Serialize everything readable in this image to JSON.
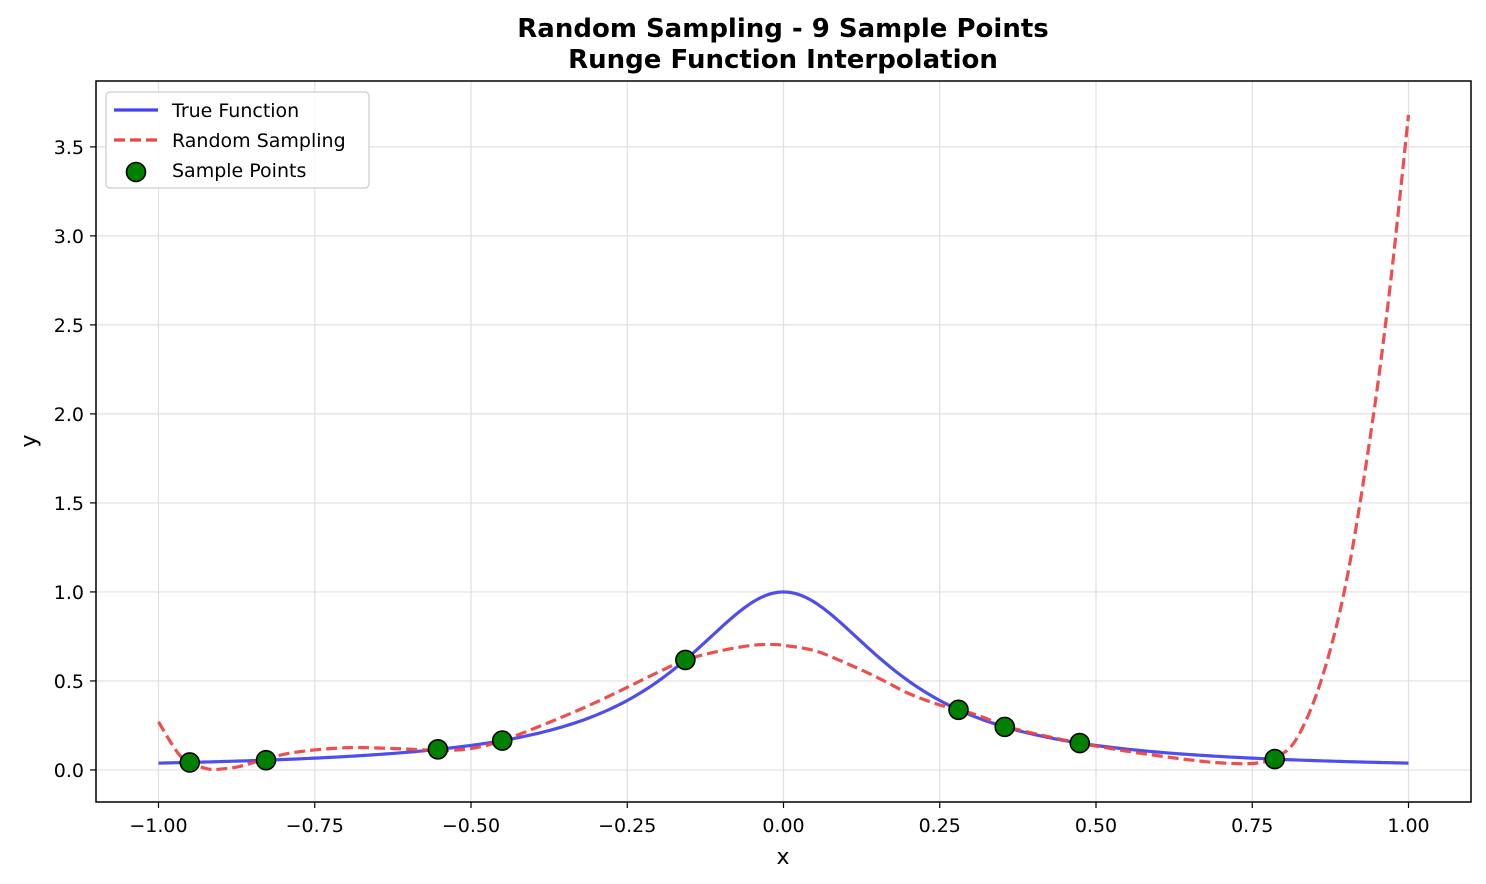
{
  "chart_data": {
    "type": "line",
    "title": "Random Sampling - 9 Sample Points",
    "subtitle": "Runge Function Interpolation",
    "xlabel": "x",
    "ylabel": "y",
    "xlim": [
      -1.1,
      1.1
    ],
    "ylim": [
      -0.18,
      3.87
    ],
    "xticks": [
      -1.0,
      -0.75,
      -0.5,
      -0.25,
      0.0,
      0.25,
      0.5,
      0.75,
      1.0
    ],
    "xtick_labels": [
      "−1.00",
      "−0.75",
      "−0.50",
      "−0.25",
      "0.00",
      "0.25",
      "0.50",
      "0.75",
      "1.00"
    ],
    "yticks": [
      0.0,
      0.5,
      1.0,
      1.5,
      2.0,
      2.5,
      3.0,
      3.5
    ],
    "ytick_labels": [
      "0.0",
      "0.5",
      "1.0",
      "1.5",
      "2.0",
      "2.5",
      "3.0",
      "3.5"
    ],
    "grid": true,
    "legend_position": "top-left",
    "series": [
      {
        "name": "True Function",
        "kind": "line",
        "style": "solid",
        "color": "#4444ee",
        "function": "1/(1+25x^2)",
        "x": [
          -1.0,
          -0.9,
          -0.8,
          -0.7,
          -0.6,
          -0.5,
          -0.4,
          -0.3,
          -0.2,
          -0.15,
          -0.1,
          -0.05,
          0.0,
          0.05,
          0.1,
          0.15,
          0.2,
          0.3,
          0.4,
          0.5,
          0.6,
          0.7,
          0.8,
          0.9,
          1.0
        ],
        "y": [
          0.038,
          0.047,
          0.059,
          0.075,
          0.1,
          0.138,
          0.2,
          0.308,
          0.5,
          0.64,
          0.8,
          0.941,
          1.0,
          0.941,
          0.8,
          0.64,
          0.5,
          0.308,
          0.2,
          0.138,
          0.1,
          0.075,
          0.059,
          0.047,
          0.038
        ]
      },
      {
        "name": "Random Sampling",
        "kind": "line",
        "style": "dashed",
        "color": "#ee4444",
        "x": [
          -1.0,
          -0.97,
          -0.95,
          -0.92,
          -0.9,
          -0.87,
          -0.83,
          -0.78,
          -0.7,
          -0.62,
          -0.55,
          -0.5,
          -0.45,
          -0.38,
          -0.3,
          -0.2,
          -0.155,
          -0.1,
          -0.05,
          -0.02,
          0.0,
          0.05,
          0.1,
          0.15,
          0.2,
          0.25,
          0.28,
          0.32,
          0.355,
          0.42,
          0.475,
          0.55,
          0.62,
          0.68,
          0.73,
          0.76,
          0.785,
          0.82,
          0.86,
          0.9,
          0.94,
          0.97,
          1.0
        ],
        "y": [
          0.27,
          0.1,
          0.04,
          0.005,
          0.005,
          0.02,
          0.06,
          0.1,
          0.125,
          0.12,
          0.11,
          0.12,
          0.165,
          0.26,
          0.38,
          0.55,
          0.62,
          0.67,
          0.7,
          0.705,
          0.7,
          0.67,
          0.6,
          0.52,
          0.43,
          0.365,
          0.34,
          0.295,
          0.245,
          0.19,
          0.15,
          0.105,
          0.07,
          0.045,
          0.035,
          0.04,
          0.065,
          0.17,
          0.5,
          1.05,
          1.9,
          2.7,
          3.68
        ]
      },
      {
        "name": "Sample Points",
        "kind": "scatter",
        "color": "#008000",
        "x": [
          -0.95,
          -0.828,
          -0.553,
          -0.45,
          -0.157,
          0.28,
          0.354,
          0.474,
          0.786
        ],
        "y": [
          0.042,
          0.055,
          0.116,
          0.165,
          0.618,
          0.338,
          0.242,
          0.151,
          0.061
        ]
      }
    ]
  }
}
